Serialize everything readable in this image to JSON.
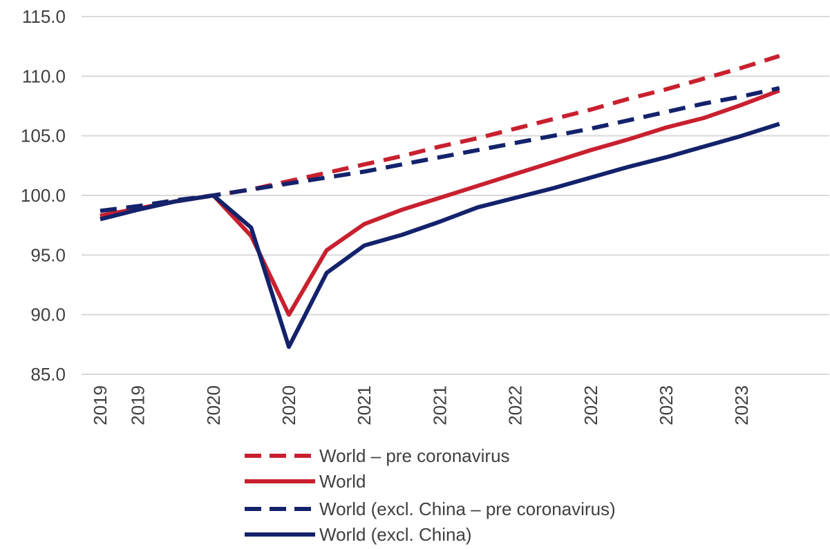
{
  "chart_data": {
    "type": "line",
    "title": "",
    "xlabel": "",
    "ylabel": "",
    "ylim": [
      85,
      115
    ],
    "yticks": [
      85,
      90,
      95,
      100,
      105,
      110,
      115
    ],
    "ytick_labels": [
      "85.0",
      "90.0",
      "95.0",
      "100.0",
      "105.0",
      "110.0",
      "115.0"
    ],
    "categories": [
      "2019",
      "2019",
      "",
      "2020",
      "",
      "2020",
      "",
      "2021",
      "",
      "2021",
      "",
      "2022",
      "",
      "2022",
      "",
      "2023",
      "",
      "2023",
      ""
    ],
    "grid": true,
    "legend_position": "bottom",
    "series": [
      {
        "name": "World – pre coronavirus",
        "color": "#c8202f",
        "dashed": true,
        "values": [
          98.3,
          98.9,
          99.5,
          100.0,
          100.5,
          101.2,
          101.9,
          102.6,
          103.3,
          104.1,
          104.8,
          105.6,
          106.4,
          107.2,
          108.1,
          108.9,
          109.8,
          110.7,
          111.7
        ]
      },
      {
        "name": "World",
        "color": "#c8202f",
        "dashed": false,
        "values": [
          98.3,
          98.9,
          99.5,
          100.0,
          96.6,
          90.0,
          95.4,
          97.6,
          98.8,
          99.8,
          100.8,
          101.8,
          102.8,
          103.8,
          104.7,
          105.7,
          106.5,
          107.6,
          108.8
        ]
      },
      {
        "name": "World (excl. China – pre coronavirus)",
        "color": "#13226b",
        "dashed": true,
        "values": [
          98.7,
          99.1,
          99.6,
          100.0,
          100.5,
          101.0,
          101.5,
          102.0,
          102.6,
          103.2,
          103.8,
          104.4,
          105.0,
          105.6,
          106.3,
          107.0,
          107.7,
          108.3,
          109.0
        ]
      },
      {
        "name": "World (excl. China)",
        "color": "#13226b",
        "dashed": false,
        "values": [
          98.0,
          98.8,
          99.5,
          100.0,
          97.3,
          87.3,
          93.5,
          95.8,
          96.7,
          97.8,
          99.0,
          99.8,
          100.6,
          101.5,
          102.4,
          103.2,
          104.1,
          105.0,
          106.0
        ]
      }
    ]
  }
}
